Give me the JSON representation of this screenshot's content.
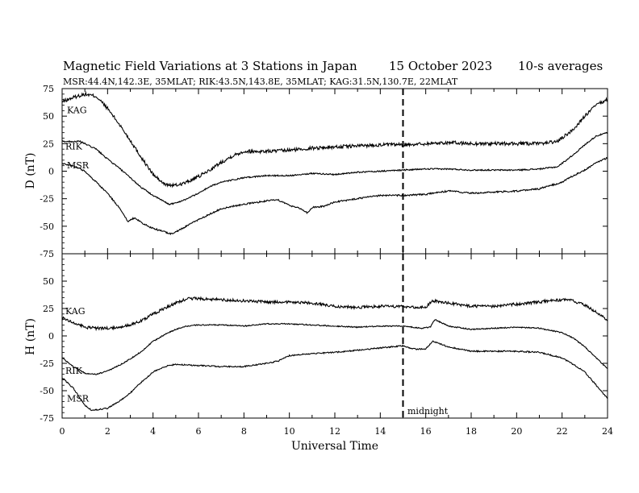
{
  "header": {
    "title": "Magnetic Field Variations at 3 Stations in Japan",
    "date": "15 October 2023",
    "averaging": "10-s averages",
    "stations": "MSR:44.4N,142.3E, 35MLAT;  RIK:43.5N,143.8E, 35MLAT;  KAG:31.5N,130.7E, 22MLAT"
  },
  "chart_data": [
    {
      "type": "line",
      "panel": "D",
      "ylabel": "D (nT)",
      "xlabel": "",
      "xlim": [
        0,
        24
      ],
      "ylim": [
        -75,
        75
      ],
      "x_ticks": [
        0,
        2,
        4,
        6,
        8,
        10,
        12,
        14,
        16,
        18,
        20,
        22,
        24
      ],
      "y_ticks": [
        -75,
        -50,
        -25,
        0,
        25,
        50,
        75
      ],
      "series": [
        {
          "name": "KAG",
          "noise": 1.6,
          "points": [
            [
              0,
              63
            ],
            [
              0.5,
              67
            ],
            [
              1,
              70
            ],
            [
              1.5,
              68
            ],
            [
              2,
              57
            ],
            [
              2.5,
              43
            ],
            [
              3,
              28
            ],
            [
              3.5,
              12
            ],
            [
              4,
              -3
            ],
            [
              4.5,
              -12
            ],
            [
              5,
              -13
            ],
            [
              5.5,
              -10
            ],
            [
              6,
              -5
            ],
            [
              6.5,
              1
            ],
            [
              7,
              8
            ],
            [
              7.5,
              14
            ],
            [
              8,
              18
            ],
            [
              8.5,
              18
            ],
            [
              9,
              18
            ],
            [
              10,
              19
            ],
            [
              11,
              21
            ],
            [
              12,
              22
            ],
            [
              13,
              23
            ],
            [
              14,
              24
            ],
            [
              15,
              24
            ],
            [
              16,
              25
            ],
            [
              17,
              26
            ],
            [
              18,
              25
            ],
            [
              19,
              25
            ],
            [
              20,
              25
            ],
            [
              21,
              25
            ],
            [
              21.8,
              27
            ],
            [
              22.5,
              38
            ],
            [
              23,
              50
            ],
            [
              23.5,
              60
            ],
            [
              24,
              65
            ]
          ]
        },
        {
          "name": "RIK",
          "noise": 0.6,
          "points": [
            [
              0,
              27
            ],
            [
              0.8,
              27
            ],
            [
              1.5,
              20
            ],
            [
              2,
              11
            ],
            [
              2.5,
              3
            ],
            [
              3,
              -6
            ],
            [
              3.5,
              -15
            ],
            [
              4,
              -22
            ],
            [
              4.7,
              -30
            ],
            [
              5,
              -29
            ],
            [
              5.5,
              -25
            ],
            [
              6,
              -20
            ],
            [
              6.5,
              -14
            ],
            [
              7,
              -10
            ],
            [
              8,
              -6
            ],
            [
              9,
              -4
            ],
            [
              10,
              -4
            ],
            [
              11,
              -2
            ],
            [
              12,
              -3
            ],
            [
              13,
              -1
            ],
            [
              14,
              0
            ],
            [
              15,
              1
            ],
            [
              16,
              2
            ],
            [
              17,
              2
            ],
            [
              18,
              1
            ],
            [
              19,
              1
            ],
            [
              20,
              1
            ],
            [
              21,
              2
            ],
            [
              21.8,
              4
            ],
            [
              22.5,
              15
            ],
            [
              23,
              24
            ],
            [
              23.5,
              32
            ],
            [
              24,
              35
            ]
          ]
        },
        {
          "name": "MSR",
          "noise": 0.7,
          "points": [
            [
              0,
              7
            ],
            [
              0.5,
              5
            ],
            [
              1,
              0
            ],
            [
              1.5,
              -10
            ],
            [
              2,
              -20
            ],
            [
              2.5,
              -33
            ],
            [
              2.9,
              -46
            ],
            [
              3.2,
              -42
            ],
            [
              3.5,
              -47
            ],
            [
              4,
              -52
            ],
            [
              4.5,
              -55
            ],
            [
              4.8,
              -57
            ],
            [
              5.2,
              -53
            ],
            [
              6,
              -44
            ],
            [
              6.5,
              -39
            ],
            [
              7,
              -34
            ],
            [
              8,
              -30
            ],
            [
              9,
              -27
            ],
            [
              9.5,
              -26
            ],
            [
              10,
              -31
            ],
            [
              10.5,
              -34
            ],
            [
              10.8,
              -38
            ],
            [
              11,
              -33
            ],
            [
              11.5,
              -32
            ],
            [
              12,
              -28
            ],
            [
              13,
              -25
            ],
            [
              14,
              -22
            ],
            [
              15,
              -22
            ],
            [
              16,
              -21
            ],
            [
              17,
              -18
            ],
            [
              18,
              -20
            ],
            [
              19,
              -19
            ],
            [
              20,
              -18
            ],
            [
              21,
              -16
            ],
            [
              22,
              -10
            ],
            [
              22.5,
              -4
            ],
            [
              23,
              1
            ],
            [
              23.5,
              8
            ],
            [
              24,
              12
            ]
          ]
        }
      ]
    },
    {
      "type": "line",
      "panel": "H",
      "ylabel": "H (nT)",
      "xlabel": "Universal Time",
      "xlim": [
        0,
        24
      ],
      "ylim": [
        -75,
        75
      ],
      "x_ticks": [
        0,
        2,
        4,
        6,
        8,
        10,
        12,
        14,
        16,
        18,
        20,
        22,
        24
      ],
      "y_ticks": [
        -75,
        -50,
        -25,
        0,
        25,
        50,
        75
      ],
      "series": [
        {
          "name": "KAG",
          "noise": 1.3,
          "points": [
            [
              0,
              17
            ],
            [
              0.5,
              12
            ],
            [
              1,
              8
            ],
            [
              1.5,
              7
            ],
            [
              2,
              7
            ],
            [
              2.5,
              8
            ],
            [
              3,
              10
            ],
            [
              3.5,
              14
            ],
            [
              4,
              20
            ],
            [
              4.5,
              25
            ],
            [
              5,
              30
            ],
            [
              5.5,
              34
            ],
            [
              6,
              34
            ],
            [
              7,
              33
            ],
            [
              8,
              32
            ],
            [
              9,
              31
            ],
            [
              10,
              31
            ],
            [
              11,
              30
            ],
            [
              12,
              27
            ],
            [
              13,
              26
            ],
            [
              14,
              27
            ],
            [
              15,
              27
            ],
            [
              15.5,
              26
            ],
            [
              16,
              26
            ],
            [
              16.3,
              32
            ],
            [
              17,
              30
            ],
            [
              18,
              27
            ],
            [
              19,
              27
            ],
            [
              20,
              29
            ],
            [
              21,
              31
            ],
            [
              22,
              33
            ],
            [
              22.5,
              32
            ],
            [
              23,
              28
            ],
            [
              23.5,
              22
            ],
            [
              24,
              14
            ]
          ]
        },
        {
          "name": "RIK",
          "noise": 0.5,
          "points": [
            [
              0,
              -20
            ],
            [
              0.5,
              -28
            ],
            [
              1,
              -34
            ],
            [
              1.5,
              -35
            ],
            [
              2,
              -32
            ],
            [
              2.5,
              -27
            ],
            [
              3,
              -21
            ],
            [
              3.5,
              -14
            ],
            [
              4,
              -5
            ],
            [
              4.5,
              1
            ],
            [
              5,
              6
            ],
            [
              5.5,
              9
            ],
            [
              6,
              10
            ],
            [
              7,
              10
            ],
            [
              8,
              9
            ],
            [
              9,
              11
            ],
            [
              10,
              11
            ],
            [
              11,
              10
            ],
            [
              12,
              9
            ],
            [
              13,
              8
            ],
            [
              14,
              9
            ],
            [
              15,
              9
            ],
            [
              15.8,
              7
            ],
            [
              16.2,
              8
            ],
            [
              16.4,
              15
            ],
            [
              17,
              9
            ],
            [
              18,
              6
            ],
            [
              19,
              7
            ],
            [
              20,
              8
            ],
            [
              21,
              7
            ],
            [
              22,
              3
            ],
            [
              22.5,
              -2
            ],
            [
              23,
              -10
            ],
            [
              23.5,
              -20
            ],
            [
              24,
              -30
            ]
          ]
        },
        {
          "name": "MSR",
          "noise": 0.6,
          "points": [
            [
              0,
              -38
            ],
            [
              0.5,
              -48
            ],
            [
              1,
              -63
            ],
            [
              1.3,
              -68
            ],
            [
              2,
              -66
            ],
            [
              2.5,
              -60
            ],
            [
              3,
              -52
            ],
            [
              3.5,
              -42
            ],
            [
              4,
              -33
            ],
            [
              4.5,
              -28
            ],
            [
              5,
              -26
            ],
            [
              6,
              -27
            ],
            [
              7,
              -28
            ],
            [
              8,
              -28
            ],
            [
              9,
              -25
            ],
            [
              9.5,
              -23
            ],
            [
              10,
              -18
            ],
            [
              11,
              -16
            ],
            [
              12,
              -15
            ],
            [
              13,
              -13
            ],
            [
              14,
              -11
            ],
            [
              15,
              -9
            ],
            [
              15.5,
              -12
            ],
            [
              16,
              -12
            ],
            [
              16.3,
              -5
            ],
            [
              17,
              -10
            ],
            [
              18,
              -14
            ],
            [
              19,
              -14
            ],
            [
              20,
              -14
            ],
            [
              21,
              -15
            ],
            [
              22,
              -20
            ],
            [
              22.5,
              -26
            ],
            [
              23,
              -33
            ],
            [
              23.5,
              -45
            ],
            [
              24,
              -57
            ]
          ]
        }
      ]
    }
  ],
  "annotations": {
    "midnight_label": "midnight",
    "midnight_ut": 15
  }
}
